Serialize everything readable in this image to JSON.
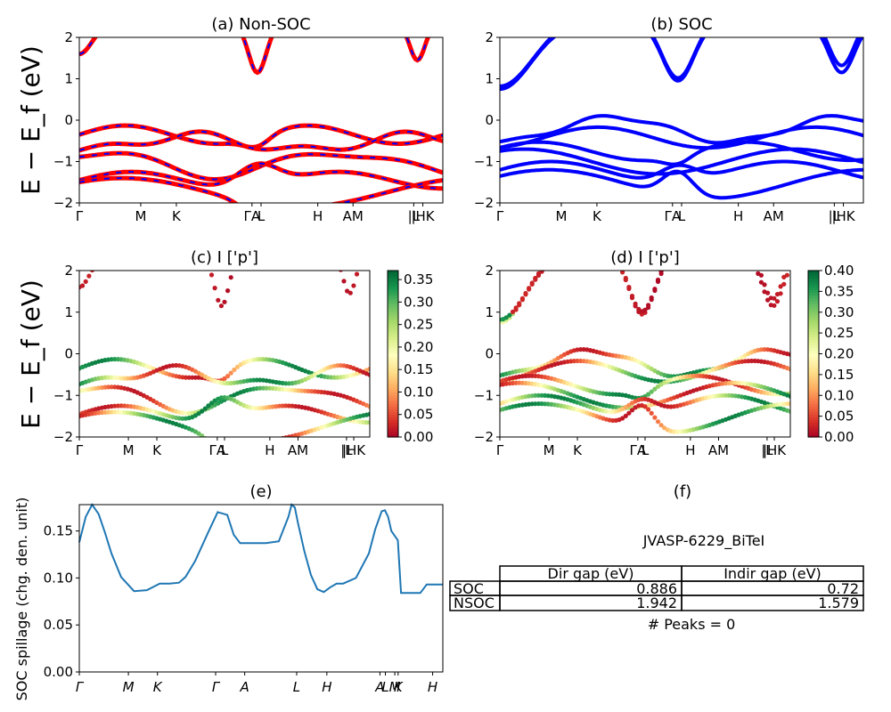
{
  "ylabel_panels": "E − E_f (eV)",
  "charts": [
    {
      "id": "a",
      "title": "(a) Non-SOC",
      "type": "line",
      "ylim": [
        -2,
        2
      ],
      "yticks": [
        "2",
        "1",
        "0",
        "−1",
        "−2"
      ],
      "xticks": [
        "Γ",
        "M",
        "K",
        "ΓA",
        "L",
        "H",
        "AM",
        "|L",
        "|HK"
      ],
      "colors": {
        "bands": "#ff0000",
        "dash": "#0000ff"
      }
    },
    {
      "id": "b",
      "title": "(b) SOC",
      "type": "line",
      "ylim": [
        -2,
        2
      ],
      "yticks": [
        "2",
        "1",
        "0",
        "−1",
        "−2"
      ],
      "xticks": [
        "Γ",
        "M",
        "K",
        "ΓA",
        "L",
        "H",
        "AM",
        "|L",
        "|HK"
      ],
      "colors": {
        "bands": "#0000ff"
      }
    },
    {
      "id": "c",
      "title": "(c)  I ['p']",
      "type": "scatter",
      "ylim": [
        -2,
        2
      ],
      "yticks": [
        "2",
        "1",
        "0",
        "−1",
        "−2"
      ],
      "xticks": [
        "Γ",
        "M",
        "K",
        "ΓA",
        "L",
        "H",
        "AM",
        "|L",
        "|HK"
      ],
      "colorbar": {
        "ticks": [
          "0.35",
          "0.30",
          "0.25",
          "0.20",
          "0.15",
          "0.10",
          "0.05",
          "0.00"
        ],
        "max": 0.37,
        "colormap": "RdYlGn"
      }
    },
    {
      "id": "d",
      "title": "(d) I ['p']",
      "type": "scatter",
      "ylim": [
        -2,
        2
      ],
      "yticks": [
        "2",
        "1",
        "0",
        "−1",
        "−2"
      ],
      "xticks": [
        "Γ",
        "M",
        "K",
        "ΓA",
        "L",
        "H",
        "AM",
        "|L",
        "|HK"
      ],
      "colorbar": {
        "ticks": [
          "0.40",
          "0.35",
          "0.30",
          "0.25",
          "0.20",
          "0.15",
          "0.10",
          "0.05",
          "0.00"
        ],
        "max": 0.4,
        "colormap": "RdYlGn"
      }
    }
  ],
  "chart_data": {
    "type": "line",
    "title": "(e)",
    "ylabel": "SOC spillage (chg. den. unit)",
    "xticks": [
      "Γ",
      "M",
      "K",
      "Γ",
      "A",
      "L",
      "H",
      "A",
      "L",
      "M",
      "K",
      "H"
    ],
    "yticks": [
      "0.15",
      "0.10",
      "0.05",
      "0.00"
    ],
    "ylim": [
      0,
      0.178
    ],
    "color": "#1f77b4",
    "x": [
      0,
      0.02,
      0.04,
      0.06,
      0.08,
      0.1,
      0.13,
      0.17,
      0.21,
      0.25,
      0.28,
      0.31,
      0.33,
      0.36,
      0.4,
      0.43,
      0.46,
      0.48,
      0.5,
      0.52,
      0.53,
      0.54,
      0.55,
      0.58,
      0.62,
      0.65,
      0.66,
      0.67,
      0.68,
      0.7,
      0.72,
      0.74,
      0.76,
      0.78,
      0.8,
      0.82,
      0.86,
      0.9,
      0.92,
      0.94,
      0.95,
      0.96,
      0.97,
      0.99,
      1.0,
      1.01,
      1.03,
      1.06,
      1.08,
      1.1,
      1.13
    ],
    "y": [
      0.138,
      0.165,
      0.178,
      0.168,
      0.148,
      0.126,
      0.101,
      0.086,
      0.087,
      0.094,
      0.094,
      0.095,
      0.101,
      0.118,
      0.148,
      0.17,
      0.167,
      0.146,
      0.137,
      0.137,
      0.137,
      0.137,
      0.137,
      0.137,
      0.139,
      0.165,
      0.178,
      0.175,
      0.158,
      0.128,
      0.103,
      0.088,
      0.085,
      0.09,
      0.094,
      0.094,
      0.1,
      0.126,
      0.152,
      0.171,
      0.172,
      0.165,
      0.15,
      0.14,
      0.084,
      0.084,
      0.084,
      0.084,
      0.093,
      0.093,
      0.093
    ]
  },
  "table_panel": {
    "title": "(f)",
    "caption": "JVASP-6229_BiTeI",
    "headers": [
      "Dir gap (eV)",
      "Indir gap (eV)"
    ],
    "rows": [
      {
        "label": "SOC",
        "dir": "0.886",
        "indir": "0.72"
      },
      {
        "label": "NSOC",
        "dir": "1.942",
        "indir": "1.579"
      }
    ],
    "footer": "# Peaks = 0"
  }
}
